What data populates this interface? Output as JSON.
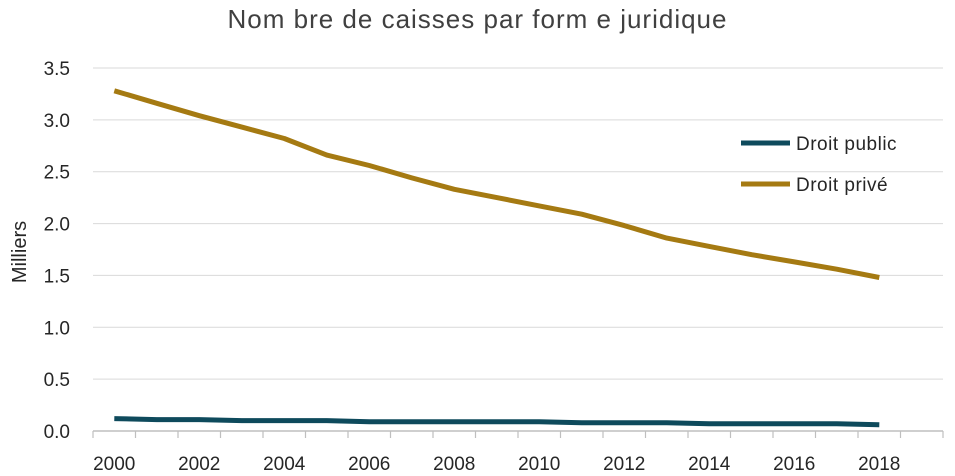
{
  "chart_data": {
    "type": "line",
    "title": "Nom bre de caisses par form e juridique",
    "xlabel": "",
    "ylabel": "Milliers",
    "x": [
      2000,
      2001,
      2002,
      2003,
      2004,
      2005,
      2006,
      2007,
      2008,
      2009,
      2010,
      2011,
      2012,
      2013,
      2014,
      2015,
      2016,
      2017,
      2018
    ],
    "x_ticks": [
      "2000",
      "2002",
      "2004",
      "2006",
      "2008",
      "2010",
      "2012",
      "2014",
      "2016",
      "2018"
    ],
    "y_ticks": [
      "0.0",
      "0.5",
      "1.0",
      "1.5",
      "2.0",
      "2.5",
      "3.0",
      "3.5"
    ],
    "ylim": [
      0,
      3.5
    ],
    "grid": true,
    "legend_position": "right",
    "series": [
      {
        "name": "Droit public",
        "color": "#0e4a5c",
        "values": [
          0.12,
          0.11,
          0.11,
          0.1,
          0.1,
          0.1,
          0.09,
          0.09,
          0.09,
          0.09,
          0.09,
          0.08,
          0.08,
          0.08,
          0.07,
          0.07,
          0.07,
          0.07,
          0.06
        ]
      },
      {
        "name": "Droit privé",
        "color": "#a57a12",
        "values": [
          3.28,
          3.16,
          3.04,
          2.93,
          2.82,
          2.66,
          2.56,
          2.44,
          2.33,
          2.25,
          2.17,
          2.09,
          1.98,
          1.86,
          1.78,
          1.7,
          1.63,
          1.56,
          1.48
        ]
      }
    ]
  }
}
